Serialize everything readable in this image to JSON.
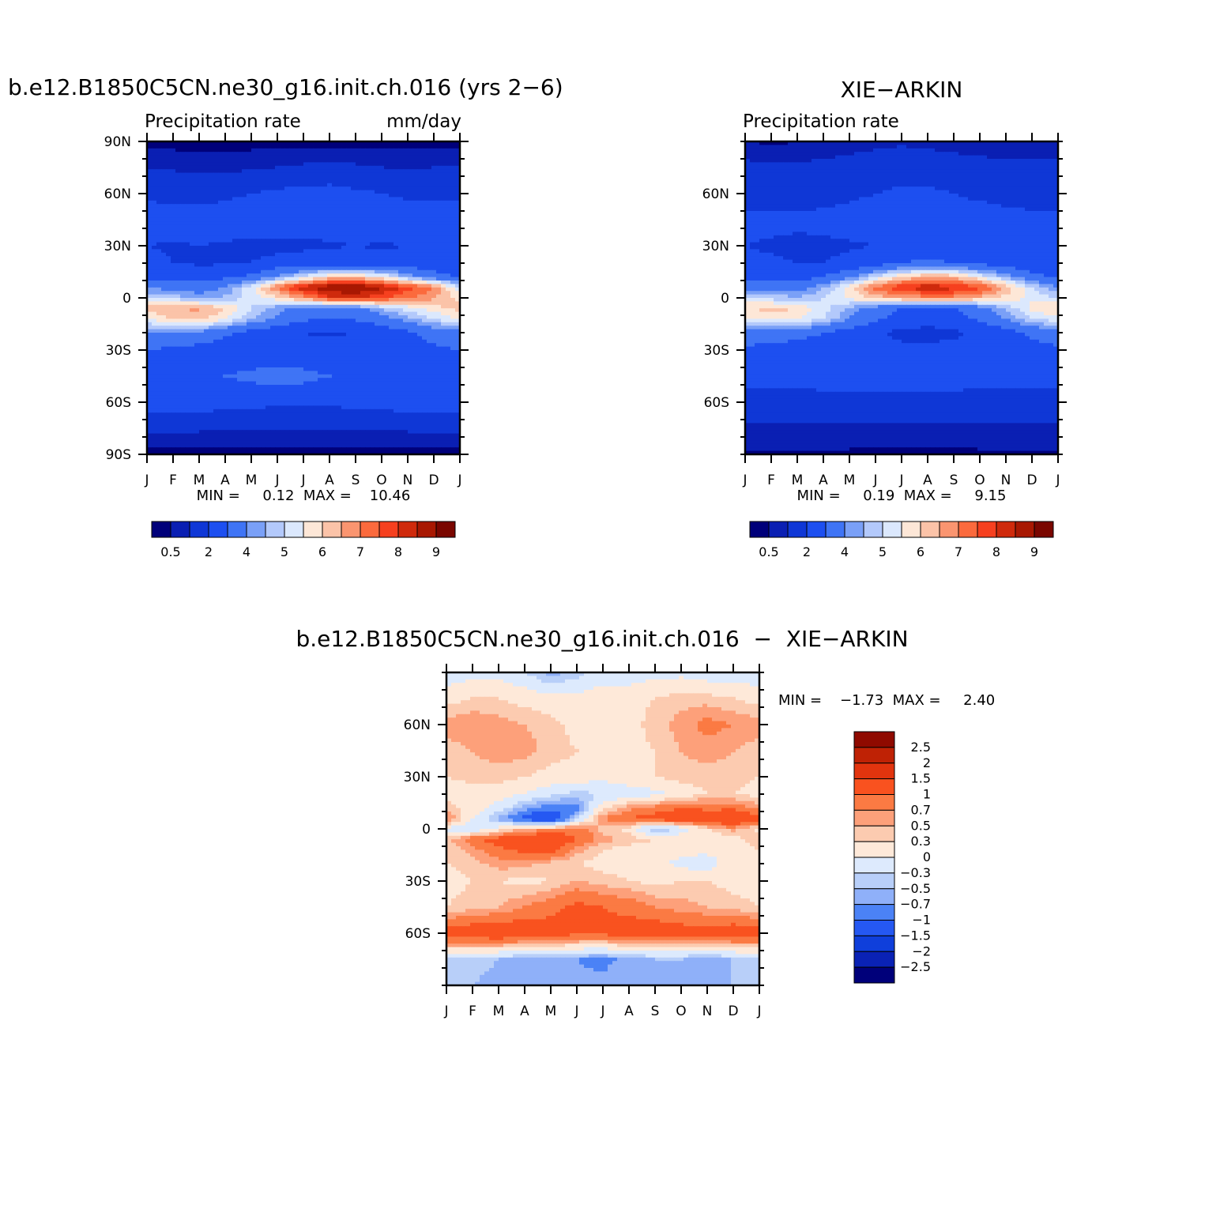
{
  "palette_abs": [
    "#00007a",
    "#0a1fb3",
    "#0f37d6",
    "#1d4ff0",
    "#3f74f5",
    "#7aa0f7",
    "#b3c9fb",
    "#dbe8fd",
    "#fde7d7",
    "#fbc3a8",
    "#fa9570",
    "#fb6a3d",
    "#f6401f",
    "#cf2a0c",
    "#a81802",
    "#7a0600"
  ],
  "palette_diff": [
    "#00007a",
    "#0a22b5",
    "#0f3fdb",
    "#2558f2",
    "#4b82f6",
    "#8fb0f9",
    "#b8cff9",
    "#ddeafd",
    "#fee9d9",
    "#fccbb0",
    "#fda07a",
    "#fb7a43",
    "#f9521f",
    "#e2340e",
    "#bf2205",
    "#8f0a00"
  ],
  "panels": [
    {
      "title": "b.e12.B1850C5CN.ne30_g16.init.ch.016 (yrs 2−6)",
      "left_string": "Precipitation  rate",
      "right_string": "mm/day",
      "stats": "MIN =     0.12  MAX =    10.46",
      "lat_labels": [
        "90N",
        "60N",
        "30N",
        "0",
        "30S",
        "60S",
        "90S"
      ],
      "lat_values": [
        90,
        60,
        30,
        0,
        -30,
        -60,
        -90
      ]
    },
    {
      "title": "XIE−ARKIN",
      "left_string": "Precipitation  rate",
      "right_string": "",
      "stats": "MIN =     0.19  MAX =     9.15",
      "lat_labels": [
        "60N",
        "30N",
        "0",
        "30S",
        "60S"
      ],
      "lat_values": [
        60,
        30,
        0,
        -30,
        -60
      ]
    },
    {
      "title": "b.e12.B1850C5CN.ne30_g16.init.ch.016  −  XIE−ARKIN",
      "stats": "MIN =    −1.73  MAX =     2.40",
      "lat_labels": [
        "60N",
        "30N",
        "0",
        "30S",
        "60S"
      ],
      "lat_values": [
        60,
        30,
        0,
        -30,
        -60
      ]
    }
  ],
  "colorbar_abs_labels": [
    "0.5",
    "2",
    "4",
    "5",
    "6",
    "7",
    "8",
    "9"
  ],
  "colorbar_diff_labels": [
    "2.5",
    "2",
    "1.5",
    "1",
    "0.7",
    "0.5",
    "0.3",
    "0",
    "−0.3",
    "−0.5",
    "−0.7",
    "−1",
    "−1.5",
    "−2",
    "−2.5"
  ],
  "chart_data": [
    {
      "type": "heatmap",
      "title": "b.e12.B1850C5CN.ne30_g16.init.ch.016 (yrs 2−6)",
      "subtitle_left": "Precipitation  rate",
      "units": "mm/day",
      "x": [
        "J",
        "F",
        "M",
        "A",
        "M",
        "J",
        "J",
        "A",
        "S",
        "O",
        "N",
        "D",
        "J"
      ],
      "ylim": [
        -90,
        90
      ],
      "min": 0.12,
      "max": 10.46,
      "levels": [
        0.5,
        1,
        2,
        3,
        4,
        4.5,
        5,
        5.5,
        6,
        6.5,
        7,
        7.5,
        8,
        8.5,
        9
      ],
      "colorbar_labels": [
        "0.5",
        "2",
        "4",
        "5",
        "6",
        "7",
        "8",
        "9"
      ],
      "lat": [
        90,
        75,
        60,
        45,
        30,
        20,
        12,
        6,
        0,
        -6,
        -12,
        -20,
        -30,
        -45,
        -60,
        -75,
        -90
      ],
      "values": [
        [
          0.3,
          0.3,
          0.3,
          0.3,
          0.3,
          0.3,
          0.3,
          0.3,
          0.3,
          0.3,
          0.3,
          0.3,
          0.3
        ],
        [
          1.0,
          0.9,
          0.8,
          0.8,
          0.9,
          1.0,
          1.1,
          1.2,
          1.1,
          1.0,
          0.9,
          1.0,
          1.0
        ],
        [
          1.8,
          1.7,
          1.7,
          1.8,
          2.0,
          2.2,
          2.4,
          2.4,
          2.2,
          2.0,
          1.8,
          1.8,
          1.8
        ],
        [
          2.5,
          2.4,
          2.4,
          2.5,
          2.6,
          2.6,
          2.6,
          2.5,
          2.6,
          2.8,
          2.7,
          2.6,
          2.5
        ],
        [
          2.0,
          1.9,
          2.0,
          1.9,
          1.8,
          1.7,
          1.8,
          1.9,
          2.0,
          1.9,
          2.0,
          2.0,
          2.0
        ],
        [
          2.2,
          2.0,
          1.9,
          1.9,
          2.0,
          2.3,
          2.5,
          2.5,
          2.4,
          2.4,
          2.3,
          2.3,
          2.2
        ],
        [
          2.8,
          2.6,
          2.6,
          2.8,
          3.2,
          4.2,
          5.2,
          6.0,
          6.2,
          5.6,
          4.5,
          3.5,
          2.8
        ],
        [
          4.0,
          3.6,
          3.5,
          4.0,
          5.4,
          7.0,
          8.4,
          9.0,
          9.2,
          8.6,
          7.8,
          7.0,
          5.0
        ],
        [
          5.0,
          4.8,
          4.4,
          4.6,
          5.2,
          5.8,
          6.8,
          7.8,
          8.0,
          7.6,
          7.0,
          6.6,
          5.8
        ],
        [
          6.2,
          6.5,
          6.6,
          6.0,
          5.0,
          4.2,
          3.6,
          3.4,
          3.6,
          4.6,
          5.2,
          5.8,
          6.2
        ],
        [
          5.6,
          6.0,
          6.2,
          5.6,
          4.6,
          3.8,
          3.2,
          3.0,
          3.1,
          3.6,
          4.4,
          5.0,
          5.6
        ],
        [
          3.8,
          4.0,
          3.8,
          3.2,
          2.6,
          2.2,
          2.0,
          1.9,
          2.0,
          2.4,
          2.8,
          3.4,
          3.8
        ],
        [
          3.0,
          2.8,
          2.6,
          2.4,
          2.3,
          2.2,
          2.2,
          2.3,
          2.4,
          2.5,
          2.6,
          2.8,
          3.0
        ],
        [
          2.7,
          2.7,
          2.8,
          3.0,
          3.2,
          3.5,
          3.3,
          3.0,
          2.8,
          2.7,
          2.6,
          2.6,
          2.7
        ],
        [
          2.6,
          2.5,
          2.5,
          2.4,
          2.3,
          2.2,
          2.2,
          2.2,
          2.3,
          2.4,
          2.5,
          2.6,
          2.6
        ],
        [
          1.2,
          1.2,
          1.1,
          1.1,
          1.0,
          1.0,
          1.0,
          1.0,
          1.0,
          1.1,
          1.1,
          1.2,
          1.2
        ],
        [
          0.3,
          0.3,
          0.3,
          0.3,
          0.3,
          0.3,
          0.3,
          0.3,
          0.3,
          0.3,
          0.3,
          0.3,
          0.3
        ]
      ]
    },
    {
      "type": "heatmap",
      "title": "XIE−ARKIN",
      "subtitle_left": "Precipitation  rate",
      "x": [
        "J",
        "F",
        "M",
        "A",
        "M",
        "J",
        "J",
        "A",
        "S",
        "O",
        "N",
        "D",
        "J"
      ],
      "ylim": [
        -90,
        90
      ],
      "min": 0.19,
      "max": 9.15,
      "levels": [
        0.5,
        1,
        2,
        3,
        4,
        4.5,
        5,
        5.5,
        6,
        6.5,
        7,
        7.5,
        8,
        8.5,
        9
      ],
      "colorbar_labels": [
        "0.5",
        "2",
        "4",
        "5",
        "6",
        "7",
        "8",
        "9"
      ],
      "lat": [
        90,
        75,
        60,
        45,
        30,
        20,
        12,
        6,
        0,
        -6,
        -12,
        -20,
        -30,
        -45,
        -60,
        -75,
        -90
      ],
      "values": [
        [
          0.5,
          0.4,
          0.5,
          0.6,
          0.7,
          0.8,
          0.9,
          0.8,
          0.7,
          0.6,
          0.5,
          0.5,
          0.5
        ],
        [
          1.2,
          1.1,
          1.1,
          1.2,
          1.3,
          1.4,
          1.5,
          1.5,
          1.4,
          1.3,
          1.2,
          1.2,
          1.2
        ],
        [
          1.5,
          1.5,
          1.5,
          1.6,
          1.8,
          2.0,
          2.2,
          2.2,
          2.0,
          1.8,
          1.6,
          1.5,
          1.5
        ],
        [
          2.2,
          2.2,
          2.2,
          2.3,
          2.4,
          2.5,
          2.5,
          2.5,
          2.5,
          2.5,
          2.4,
          2.3,
          2.2
        ],
        [
          2.0,
          1.9,
          1.8,
          1.8,
          1.9,
          2.0,
          2.2,
          2.3,
          2.2,
          2.1,
          2.0,
          2.0,
          2.0
        ],
        [
          2.2,
          2.1,
          2.0,
          2.0,
          2.2,
          2.6,
          3.0,
          3.2,
          3.0,
          2.8,
          2.5,
          2.3,
          2.2
        ],
        [
          2.8,
          2.6,
          2.6,
          3.0,
          3.8,
          5.0,
          6.0,
          6.5,
          6.4,
          5.5,
          4.4,
          3.4,
          2.8
        ],
        [
          3.8,
          3.5,
          3.6,
          4.4,
          5.8,
          7.2,
          8.0,
          8.4,
          8.2,
          7.6,
          6.4,
          5.0,
          4.0
        ],
        [
          5.0,
          4.8,
          4.6,
          5.0,
          5.6,
          6.2,
          6.6,
          6.8,
          6.8,
          6.4,
          5.8,
          5.4,
          5.0
        ],
        [
          6.0,
          6.2,
          6.0,
          5.2,
          4.4,
          3.6,
          3.0,
          2.8,
          3.0,
          3.6,
          4.6,
          5.6,
          6.0
        ],
        [
          5.4,
          5.6,
          5.6,
          5.0,
          4.0,
          3.2,
          2.6,
          2.4,
          2.6,
          3.2,
          4.0,
          5.0,
          5.4
        ],
        [
          3.6,
          3.6,
          3.4,
          3.0,
          2.5,
          2.1,
          1.8,
          1.7,
          1.8,
          2.2,
          2.6,
          3.2,
          3.6
        ],
        [
          2.8,
          2.6,
          2.5,
          2.4,
          2.3,
          2.2,
          2.2,
          2.2,
          2.3,
          2.4,
          2.5,
          2.6,
          2.8
        ],
        [
          2.4,
          2.4,
          2.4,
          2.5,
          2.6,
          2.7,
          2.7,
          2.6,
          2.5,
          2.4,
          2.4,
          2.4,
          2.4
        ],
        [
          1.5,
          1.5,
          1.5,
          1.6,
          1.6,
          1.6,
          1.6,
          1.6,
          1.6,
          1.6,
          1.5,
          1.5,
          1.5
        ],
        [
          0.9,
          0.9,
          0.9,
          0.9,
          0.9,
          0.8,
          0.8,
          0.8,
          0.8,
          0.9,
          0.9,
          0.9,
          0.9
        ],
        [
          0.4,
          0.4,
          0.4,
          0.4,
          0.4,
          0.4,
          0.4,
          0.4,
          0.4,
          0.4,
          0.4,
          0.4,
          0.4
        ]
      ]
    },
    {
      "type": "heatmap",
      "title": "b.e12.B1850C5CN.ne30_g16.init.ch.016  −  XIE−ARKIN",
      "x": [
        "J",
        "F",
        "M",
        "A",
        "M",
        "J",
        "J",
        "A",
        "S",
        "O",
        "N",
        "D",
        "J"
      ],
      "ylim": [
        -90,
        90
      ],
      "min": -1.73,
      "max": 2.4,
      "levels": [
        -2.5,
        -2,
        -1.5,
        -1,
        -0.7,
        -0.5,
        -0.3,
        0,
        0.3,
        0.5,
        0.7,
        1,
        1.5,
        2,
        2.5
      ],
      "colorbar_labels": [
        "2.5",
        "2",
        "1.5",
        "1",
        "0.7",
        "0.5",
        "0.3",
        "0",
        "−0.3",
        "−0.5",
        "−0.7",
        "−1",
        "−1.5",
        "−2",
        "−2.5"
      ],
      "lat": [
        90,
        75,
        60,
        45,
        30,
        20,
        12,
        6,
        0,
        -6,
        -12,
        -20,
        -30,
        -45,
        -60,
        -75,
        -90
      ],
      "values": [
        [
          -0.2,
          -0.1,
          -0.1,
          -0.3,
          -0.6,
          -0.4,
          -0.2,
          -0.2,
          -0.1,
          -0.1,
          -0.2,
          -0.2,
          -0.2
        ],
        [
          0.2,
          0.3,
          0.3,
          0.2,
          0.1,
          0.1,
          0.2,
          0.2,
          0.3,
          0.4,
          0.4,
          0.3,
          0.2
        ],
        [
          0.6,
          0.7,
          0.6,
          0.5,
          0.4,
          0.2,
          0.1,
          0.2,
          0.4,
          0.6,
          0.8,
          0.7,
          0.6
        ],
        [
          0.4,
          0.5,
          0.6,
          0.6,
          0.4,
          0.3,
          0.2,
          0.2,
          0.3,
          0.5,
          0.6,
          0.5,
          0.4
        ],
        [
          0.3,
          0.4,
          0.4,
          0.3,
          0.2,
          0.2,
          0.1,
          0.2,
          0.3,
          0.4,
          0.4,
          0.4,
          0.3
        ],
        [
          0.2,
          0.1,
          0.1,
          0.0,
          -0.2,
          -0.4,
          -0.3,
          -0.2,
          -0.1,
          0.1,
          0.3,
          0.3,
          0.2
        ],
        [
          0.4,
          0.2,
          -0.1,
          -0.6,
          -0.9,
          -0.8,
          0.2,
          0.6,
          0.8,
          1.0,
          0.9,
          0.9,
          0.6
        ],
        [
          0.8,
          0.0,
          -0.6,
          -1.2,
          -1.5,
          -0.4,
          0.7,
          1.0,
          1.2,
          1.4,
          1.4,
          1.6,
          1.2
        ],
        [
          -0.1,
          -0.3,
          0.1,
          0.5,
          0.6,
          0.9,
          0.4,
          0.2,
          -0.6,
          -0.2,
          0.3,
          0.6,
          0.2
        ],
        [
          0.4,
          0.9,
          1.2,
          1.4,
          1.5,
          1.0,
          0.6,
          0.4,
          0.3,
          0.2,
          0.1,
          0.2,
          0.4
        ],
        [
          0.3,
          0.6,
          0.9,
          1.1,
          1.2,
          0.6,
          0.3,
          0.2,
          0.2,
          0.1,
          0.1,
          0.2,
          0.3
        ],
        [
          0.3,
          0.4,
          0.6,
          0.6,
          0.4,
          0.3,
          0.2,
          0.2,
          0.1,
          -0.1,
          -0.2,
          0.2,
          0.3
        ],
        [
          0.2,
          0.3,
          0.3,
          0.2,
          0.3,
          0.5,
          0.4,
          0.3,
          0.2,
          0.3,
          0.3,
          0.2,
          0.2
        ],
        [
          0.3,
          0.4,
          0.5,
          0.7,
          0.9,
          1.1,
          1.0,
          0.9,
          0.7,
          0.6,
          0.5,
          0.4,
          0.3
        ],
        [
          1.2,
          1.3,
          1.4,
          1.3,
          1.2,
          1.1,
          1.1,
          1.2,
          1.3,
          1.2,
          1.2,
          1.3,
          1.2
        ],
        [
          -0.3,
          -0.4,
          -0.5,
          -0.6,
          -0.6,
          -0.7,
          -0.8,
          -0.6,
          -0.5,
          -0.5,
          -0.6,
          -0.5,
          -0.3
        ],
        [
          -0.4,
          -0.5,
          -0.6,
          -0.7,
          -0.7,
          -0.6,
          -0.6,
          -0.5,
          -0.5,
          -0.6,
          -0.6,
          -0.5,
          -0.4
        ]
      ]
    }
  ]
}
